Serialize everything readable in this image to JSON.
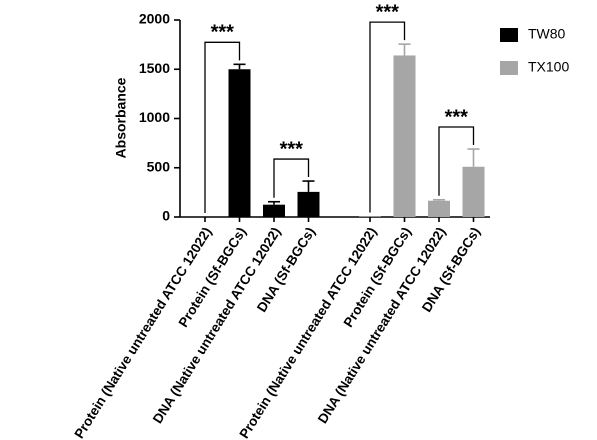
{
  "chart_data": {
    "type": "bar",
    "y_label": "Absorbance",
    "categories": [
      "Protein (Native untreated ATCC 12022)",
      "Protein (Sf-BGCs)",
      "DNA (Native untreated ATCC 12022)",
      "DNA (Sf-BGCs)",
      "Protein (Native untreated ATCC 12022)",
      "Protein (Sf-BGCs)",
      "DNA (Native untreated ATCC 12022)",
      "DNA (Sf-BGCs)"
    ],
    "series": [
      {
        "name": "TW80",
        "color": "#000000",
        "values": [
          0,
          1500,
          125,
          255,
          null,
          null,
          null,
          null
        ],
        "errors": [
          0,
          50,
          30,
          110,
          null,
          null,
          null,
          null
        ]
      },
      {
        "name": "TX100",
        "color": "#a6a6a6",
        "values": [
          null,
          null,
          null,
          null,
          5,
          1640,
          165,
          510
        ],
        "errors": [
          null,
          null,
          null,
          null,
          0,
          115,
          10,
          180
        ]
      }
    ],
    "annotations": [
      "***",
      "***",
      "***",
      "***"
    ],
    "ylim": [
      0,
      2000
    ],
    "yticks": [
      0,
      500,
      1000,
      1500,
      2000
    ],
    "legend": "top-right"
  }
}
